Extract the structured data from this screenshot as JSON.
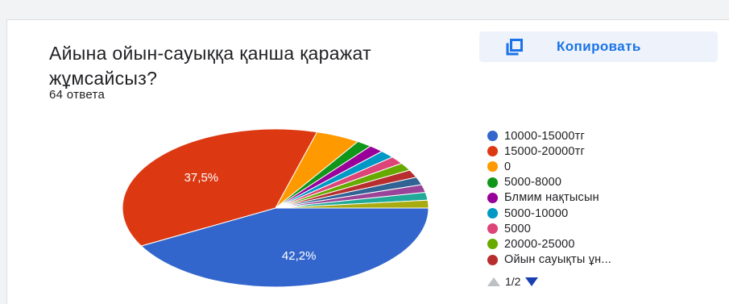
{
  "question": {
    "title": "Айына ойын-сауыққа қанша қаражат жұмсайсыз?",
    "responses": "64 ответа"
  },
  "copy_button": {
    "label": "Копировать",
    "icon": "copy-icon"
  },
  "chart_data": {
    "type": "pie",
    "title": "",
    "slices": [
      {
        "label": "10000-15000тг",
        "value": 42.2,
        "color": "#3366cc",
        "data_label": "42,2%"
      },
      {
        "label": "15000-20000тг",
        "value": 37.5,
        "color": "#dc3912",
        "data_label": "37,5%"
      },
      {
        "label": "0",
        "value": 4.7,
        "color": "#ff9900",
        "data_label": ""
      },
      {
        "label": "5000-8000",
        "value": 1.6,
        "color": "#109618",
        "data_label": ""
      },
      {
        "label": "Блмим нақтысын",
        "value": 1.6,
        "color": "#990099",
        "data_label": ""
      },
      {
        "label": "5000-10000",
        "value": 1.6,
        "color": "#0099c6",
        "data_label": ""
      },
      {
        "label": "5000",
        "value": 1.6,
        "color": "#dd4477",
        "data_label": ""
      },
      {
        "label": "20000-25000",
        "value": 1.6,
        "color": "#66aa00",
        "data_label": ""
      },
      {
        "label": "Ойын сауықты ұн...",
        "value": 1.6,
        "color": "#b82e2e",
        "data_label": ""
      },
      {
        "label": "",
        "value": 1.6,
        "color": "#316395",
        "data_label": ""
      },
      {
        "label": "",
        "value": 1.6,
        "color": "#994499",
        "data_label": ""
      },
      {
        "label": "",
        "value": 1.6,
        "color": "#22aa99",
        "data_label": ""
      },
      {
        "label": "",
        "value": 1.6,
        "color": "#aaaa11",
        "data_label": ""
      }
    ],
    "legend_position": "right"
  },
  "legend": {
    "visible_count": 9
  },
  "pager": {
    "label": "1/2"
  }
}
